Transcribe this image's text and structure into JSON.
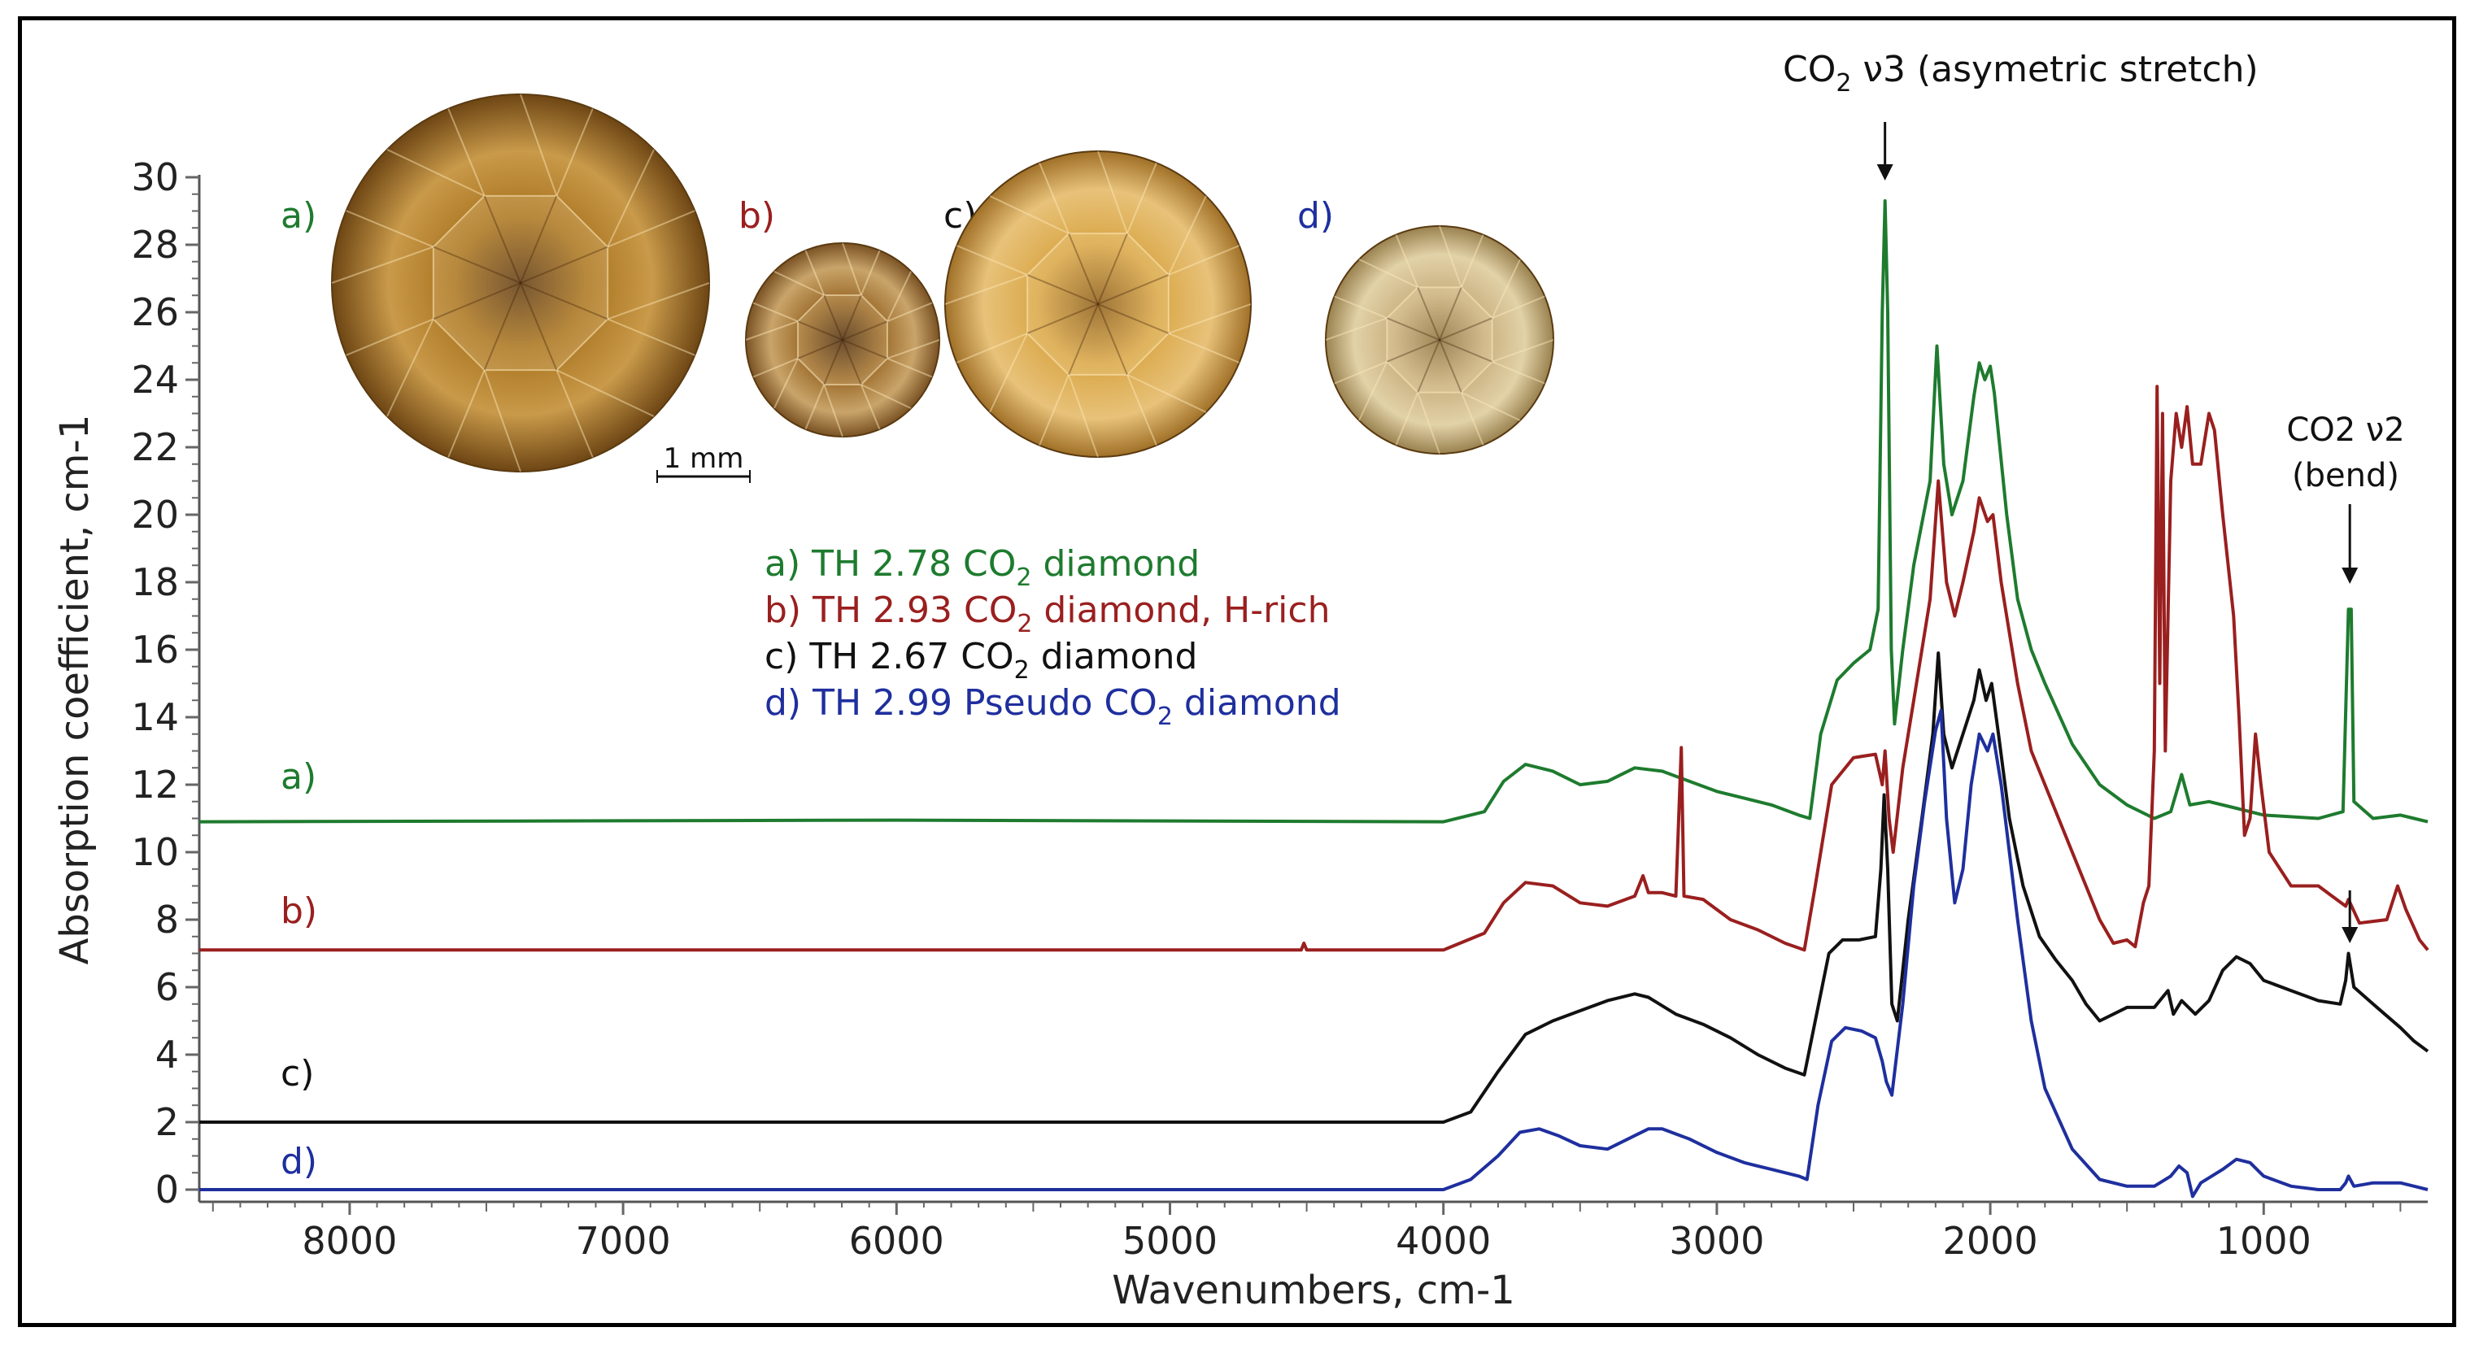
{
  "chart_data": {
    "type": "line",
    "xlabel": "Wavenumbers, cm-1",
    "ylabel": "Absorption coefficient, cm-1",
    "xlim": [
      8550,
      400
    ],
    "ylim": [
      0,
      30
    ],
    "x_ticks": [
      8000,
      7000,
      6000,
      5000,
      4000,
      3000,
      2000,
      1000
    ],
    "y_ticks": [
      0,
      2,
      4,
      6,
      8,
      10,
      12,
      14,
      16,
      18,
      20,
      22,
      24,
      26,
      28,
      30
    ],
    "series": [
      {
        "name": "a) TH 2.78 CO2 diamond",
        "label": "a)",
        "color": "#1e7b2e",
        "points": [
          [
            8550,
            10.9
          ],
          [
            6000,
            10.95
          ],
          [
            4000,
            10.9
          ],
          [
            3850,
            11.2
          ],
          [
            3780,
            12.1
          ],
          [
            3700,
            12.6
          ],
          [
            3600,
            12.4
          ],
          [
            3500,
            12.0
          ],
          [
            3400,
            12.1
          ],
          [
            3300,
            12.5
          ],
          [
            3200,
            12.4
          ],
          [
            3100,
            12.1
          ],
          [
            3000,
            11.8
          ],
          [
            2900,
            11.6
          ],
          [
            2800,
            11.4
          ],
          [
            2700,
            11.1
          ],
          [
            2660,
            11.0
          ],
          [
            2620,
            13.5
          ],
          [
            2560,
            15.1
          ],
          [
            2500,
            15.6
          ],
          [
            2440,
            16.0
          ],
          [
            2410,
            17.2
          ],
          [
            2395,
            26.0
          ],
          [
            2385,
            29.3
          ],
          [
            2375,
            26.0
          ],
          [
            2362,
            16.0
          ],
          [
            2350,
            13.8
          ],
          [
            2320,
            16.0
          ],
          [
            2280,
            18.5
          ],
          [
            2220,
            21.0
          ],
          [
            2195,
            25.0
          ],
          [
            2170,
            21.5
          ],
          [
            2140,
            20.0
          ],
          [
            2100,
            21.0
          ],
          [
            2060,
            23.5
          ],
          [
            2040,
            24.5
          ],
          [
            2020,
            24.0
          ],
          [
            2000,
            24.4
          ],
          [
            1985,
            23.6
          ],
          [
            1940,
            20.0
          ],
          [
            1900,
            17.5
          ],
          [
            1850,
            16.0
          ],
          [
            1800,
            15.0
          ],
          [
            1700,
            13.2
          ],
          [
            1600,
            12.0
          ],
          [
            1500,
            11.4
          ],
          [
            1400,
            11.0
          ],
          [
            1340,
            11.2
          ],
          [
            1300,
            12.3
          ],
          [
            1270,
            11.4
          ],
          [
            1200,
            11.5
          ],
          [
            1100,
            11.3
          ],
          [
            1000,
            11.1
          ],
          [
            800,
            11.0
          ],
          [
            710,
            11.2
          ],
          [
            690,
            17.2
          ],
          [
            680,
            17.2
          ],
          [
            670,
            11.5
          ],
          [
            600,
            11.0
          ],
          [
            500,
            11.1
          ],
          [
            450,
            11.0
          ],
          [
            400,
            10.9
          ]
        ]
      },
      {
        "name": "b) TH 2.93 CO2 diamond, H-rich",
        "label": "b)",
        "color": "#9a1f1f",
        "points": [
          [
            8550,
            7.1
          ],
          [
            6000,
            7.1
          ],
          [
            4520,
            7.1
          ],
          [
            4510,
            7.3
          ],
          [
            4500,
            7.1
          ],
          [
            4000,
            7.1
          ],
          [
            3850,
            7.6
          ],
          [
            3780,
            8.5
          ],
          [
            3700,
            9.1
          ],
          [
            3600,
            9.0
          ],
          [
            3500,
            8.5
          ],
          [
            3400,
            8.4
          ],
          [
            3300,
            8.7
          ],
          [
            3270,
            9.3
          ],
          [
            3250,
            8.8
          ],
          [
            3200,
            8.8
          ],
          [
            3150,
            8.7
          ],
          [
            3130,
            13.1
          ],
          [
            3120,
            8.7
          ],
          [
            3050,
            8.6
          ],
          [
            2950,
            8.0
          ],
          [
            2850,
            7.7
          ],
          [
            2750,
            7.3
          ],
          [
            2680,
            7.1
          ],
          [
            2640,
            9.0
          ],
          [
            2580,
            12.0
          ],
          [
            2500,
            12.8
          ],
          [
            2420,
            12.9
          ],
          [
            2395,
            12.0
          ],
          [
            2385,
            13.0
          ],
          [
            2370,
            11.0
          ],
          [
            2355,
            10.0
          ],
          [
            2320,
            12.5
          ],
          [
            2280,
            14.5
          ],
          [
            2220,
            17.5
          ],
          [
            2190,
            21.0
          ],
          [
            2160,
            18.0
          ],
          [
            2130,
            17.0
          ],
          [
            2100,
            18.0
          ],
          [
            2060,
            19.5
          ],
          [
            2040,
            20.5
          ],
          [
            2010,
            19.8
          ],
          [
            1990,
            20.0
          ],
          [
            1960,
            18.0
          ],
          [
            1900,
            15.0
          ],
          [
            1850,
            13.0
          ],
          [
            1800,
            12.0
          ],
          [
            1700,
            10.0
          ],
          [
            1600,
            8.0
          ],
          [
            1550,
            7.3
          ],
          [
            1500,
            7.4
          ],
          [
            1470,
            7.2
          ],
          [
            1440,
            8.5
          ],
          [
            1420,
            9.0
          ],
          [
            1400,
            13.0
          ],
          [
            1390,
            23.8
          ],
          [
            1380,
            15.0
          ],
          [
            1370,
            23.0
          ],
          [
            1360,
            13.0
          ],
          [
            1340,
            21.0
          ],
          [
            1320,
            23.0
          ],
          [
            1300,
            22.0
          ],
          [
            1280,
            23.2
          ],
          [
            1260,
            21.5
          ],
          [
            1230,
            21.5
          ],
          [
            1200,
            23.0
          ],
          [
            1180,
            22.5
          ],
          [
            1150,
            20.0
          ],
          [
            1110,
            17.0
          ],
          [
            1090,
            14.0
          ],
          [
            1070,
            10.5
          ],
          [
            1050,
            11.0
          ],
          [
            1030,
            13.5
          ],
          [
            1010,
            12.0
          ],
          [
            980,
            10.0
          ],
          [
            900,
            9.0
          ],
          [
            800,
            9.0
          ],
          [
            750,
            8.7
          ],
          [
            700,
            8.4
          ],
          [
            690,
            8.6
          ],
          [
            650,
            7.9
          ],
          [
            550,
            8.0
          ],
          [
            510,
            9.0
          ],
          [
            480,
            8.3
          ],
          [
            430,
            7.4
          ],
          [
            400,
            7.1
          ]
        ]
      },
      {
        "name": "c) TH 2.67 CO2 diamond",
        "label": "c)",
        "color": "#111111",
        "points": [
          [
            8550,
            2.0
          ],
          [
            6000,
            2.0
          ],
          [
            4000,
            2.0
          ],
          [
            3900,
            2.3
          ],
          [
            3800,
            3.5
          ],
          [
            3700,
            4.6
          ],
          [
            3600,
            5.0
          ],
          [
            3500,
            5.3
          ],
          [
            3400,
            5.6
          ],
          [
            3300,
            5.8
          ],
          [
            3250,
            5.7
          ],
          [
            3150,
            5.2
          ],
          [
            3050,
            4.9
          ],
          [
            2950,
            4.5
          ],
          [
            2850,
            4.0
          ],
          [
            2750,
            3.6
          ],
          [
            2680,
            3.4
          ],
          [
            2640,
            5.0
          ],
          [
            2590,
            7.0
          ],
          [
            2540,
            7.4
          ],
          [
            2480,
            7.4
          ],
          [
            2420,
            7.5
          ],
          [
            2400,
            9.5
          ],
          [
            2388,
            11.7
          ],
          [
            2375,
            9.5
          ],
          [
            2360,
            5.5
          ],
          [
            2340,
            5.0
          ],
          [
            2300,
            8.0
          ],
          [
            2250,
            11.0
          ],
          [
            2210,
            13.5
          ],
          [
            2190,
            15.9
          ],
          [
            2170,
            13.5
          ],
          [
            2140,
            12.5
          ],
          [
            2100,
            13.5
          ],
          [
            2060,
            14.5
          ],
          [
            2040,
            15.4
          ],
          [
            2015,
            14.5
          ],
          [
            1995,
            15.0
          ],
          [
            1970,
            13.5
          ],
          [
            1930,
            11.0
          ],
          [
            1880,
            9.0
          ],
          [
            1820,
            7.5
          ],
          [
            1760,
            6.8
          ],
          [
            1700,
            6.2
          ],
          [
            1650,
            5.5
          ],
          [
            1600,
            5.0
          ],
          [
            1500,
            5.4
          ],
          [
            1400,
            5.4
          ],
          [
            1350,
            5.9
          ],
          [
            1330,
            5.2
          ],
          [
            1300,
            5.6
          ],
          [
            1250,
            5.2
          ],
          [
            1200,
            5.6
          ],
          [
            1150,
            6.5
          ],
          [
            1100,
            6.9
          ],
          [
            1050,
            6.7
          ],
          [
            1000,
            6.2
          ],
          [
            900,
            5.9
          ],
          [
            800,
            5.6
          ],
          [
            720,
            5.5
          ],
          [
            700,
            6.2
          ],
          [
            690,
            7.0
          ],
          [
            670,
            6.0
          ],
          [
            600,
            5.5
          ],
          [
            500,
            4.8
          ],
          [
            450,
            4.4
          ],
          [
            400,
            4.1
          ]
        ]
      },
      {
        "name": "d) TH 2.99 Pseudo CO2 diamond",
        "label": "d)",
        "color": "#1f2f9e",
        "points": [
          [
            8550,
            0.0
          ],
          [
            6000,
            0.0
          ],
          [
            4000,
            0.0
          ],
          [
            3900,
            0.3
          ],
          [
            3800,
            1.0
          ],
          [
            3720,
            1.7
          ],
          [
            3650,
            1.8
          ],
          [
            3580,
            1.6
          ],
          [
            3500,
            1.3
          ],
          [
            3400,
            1.2
          ],
          [
            3300,
            1.6
          ],
          [
            3250,
            1.8
          ],
          [
            3200,
            1.8
          ],
          [
            3100,
            1.5
          ],
          [
            3000,
            1.1
          ],
          [
            2900,
            0.8
          ],
          [
            2800,
            0.6
          ],
          [
            2700,
            0.4
          ],
          [
            2670,
            0.3
          ],
          [
            2630,
            2.5
          ],
          [
            2580,
            4.4
          ],
          [
            2530,
            4.8
          ],
          [
            2470,
            4.7
          ],
          [
            2420,
            4.5
          ],
          [
            2395,
            3.8
          ],
          [
            2380,
            3.2
          ],
          [
            2360,
            2.8
          ],
          [
            2320,
            5.5
          ],
          [
            2280,
            9.0
          ],
          [
            2240,
            11.5
          ],
          [
            2200,
            13.6
          ],
          [
            2180,
            14.2
          ],
          [
            2160,
            11.0
          ],
          [
            2130,
            8.5
          ],
          [
            2100,
            9.5
          ],
          [
            2070,
            12.0
          ],
          [
            2040,
            13.5
          ],
          [
            2010,
            13.0
          ],
          [
            1990,
            13.5
          ],
          [
            1960,
            12.0
          ],
          [
            1900,
            8.0
          ],
          [
            1850,
            5.0
          ],
          [
            1800,
            3.0
          ],
          [
            1700,
            1.2
          ],
          [
            1600,
            0.3
          ],
          [
            1500,
            0.1
          ],
          [
            1400,
            0.1
          ],
          [
            1340,
            0.4
          ],
          [
            1310,
            0.7
          ],
          [
            1280,
            0.5
          ],
          [
            1260,
            -0.2
          ],
          [
            1230,
            0.2
          ],
          [
            1150,
            0.6
          ],
          [
            1100,
            0.9
          ],
          [
            1050,
            0.8
          ],
          [
            1000,
            0.4
          ],
          [
            900,
            0.1
          ],
          [
            800,
            0.0
          ],
          [
            720,
            0.0
          ],
          [
            700,
            0.2
          ],
          [
            690,
            0.4
          ],
          [
            670,
            0.1
          ],
          [
            600,
            0.2
          ],
          [
            500,
            0.2
          ],
          [
            450,
            0.1
          ],
          [
            400,
            0.0
          ]
        ]
      }
    ],
    "legend": [
      {
        "prefix": "a) TH 2.78 CO",
        "sub": "2",
        "suffix": " diamond",
        "color": "#1e7b2e"
      },
      {
        "prefix": "b) TH 2.93 CO",
        "sub": "2",
        "suffix": " diamond, H-rich",
        "color": "#9a1f1f"
      },
      {
        "prefix": "c) TH 2.67 CO",
        "sub": "2",
        "suffix": " diamond",
        "color": "#111111"
      },
      {
        "prefix": "d) TH 2.99 Pseudo CO",
        "sub": "2",
        "suffix": " diamond",
        "color": "#1f2f9e"
      }
    ],
    "annotations": {
      "co2_v3": {
        "prefix": "CO",
        "sub": "2",
        "suffix": " ν3 (asymetric stretch)",
        "x": 2385
      },
      "co2_v2_line1": "CO2 ν2",
      "co2_v2_line2": "(bend)",
      "co2_v2_x": 685
    },
    "gem_labels": [
      "a)",
      "b)",
      "c)",
      "d)"
    ],
    "gem_colors": [
      "#1e7b2e",
      "#9a1f1f",
      "#111111",
      "#1f2f9e"
    ],
    "scale_bar_label": "1 mm"
  }
}
